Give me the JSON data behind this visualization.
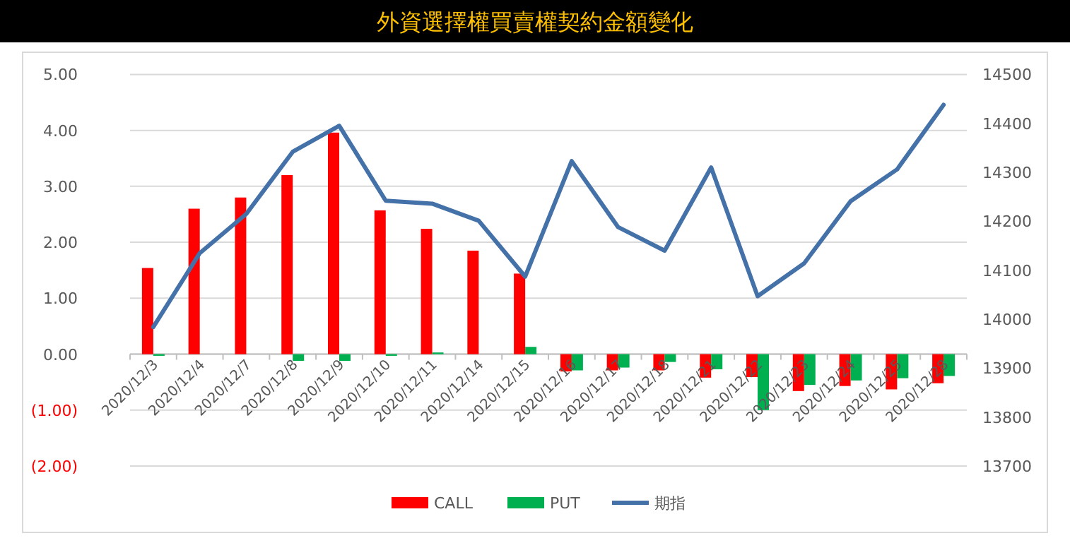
{
  "chart_data": {
    "type": "bar",
    "title": "外資選擇權買賣權契約金額變化",
    "categories": [
      "2020/12/3",
      "2020/12/4",
      "2020/12/7",
      "2020/12/8",
      "2020/12/9",
      "2020/12/10",
      "2020/12/11",
      "2020/12/14",
      "2020/12/15",
      "2020/12/16",
      "2020/12/17",
      "2020/12/18",
      "2020/12/21",
      "2020/12/22",
      "2020/12/23",
      "2020/12/24",
      "2020/12/25",
      "2020/12/28"
    ],
    "series": [
      {
        "name": "CALL",
        "color": "#ff0000",
        "values": [
          1.54,
          2.6,
          2.8,
          3.2,
          3.96,
          2.57,
          2.24,
          1.85,
          1.44,
          -0.31,
          -0.29,
          -0.29,
          -0.42,
          -0.41,
          -0.66,
          -0.57,
          -0.63,
          -0.52
        ]
      },
      {
        "name": "PUT",
        "color": "#00b050",
        "values": [
          -0.03,
          0,
          0,
          -0.12,
          -0.12,
          -0.03,
          0.03,
          0,
          0.13,
          -0.29,
          -0.24,
          -0.14,
          -0.27,
          -1.0,
          -0.55,
          -0.47,
          -0.43,
          -0.39
        ]
      },
      {
        "name": "期指",
        "color": "#4472a8",
        "type": "line",
        "axis": "y2",
        "values": [
          13984,
          14135,
          14215,
          14342,
          14395,
          14242,
          14236,
          14201,
          14087,
          14323,
          14188,
          14140,
          14310,
          14047,
          14114,
          14241,
          14306,
          14438
        ]
      }
    ],
    "ylim": [
      -2,
      5
    ],
    "yticks": [
      {
        "value": -2,
        "label": "(2.00)"
      },
      {
        "value": -1,
        "label": "(1.00)"
      },
      {
        "value": 0,
        "label": "0.00"
      },
      {
        "value": 1,
        "label": "1.00"
      },
      {
        "value": 2,
        "label": "2.00"
      },
      {
        "value": 3,
        "label": "3.00"
      },
      {
        "value": 4,
        "label": "4.00"
      },
      {
        "value": 5,
        "label": "5.00"
      }
    ],
    "y2lim": [
      13700,
      14500
    ],
    "y2ticks": [
      13700,
      13800,
      13900,
      14000,
      14100,
      14200,
      14300,
      14400,
      14500
    ],
    "grid": "y",
    "legend": "bottom"
  }
}
